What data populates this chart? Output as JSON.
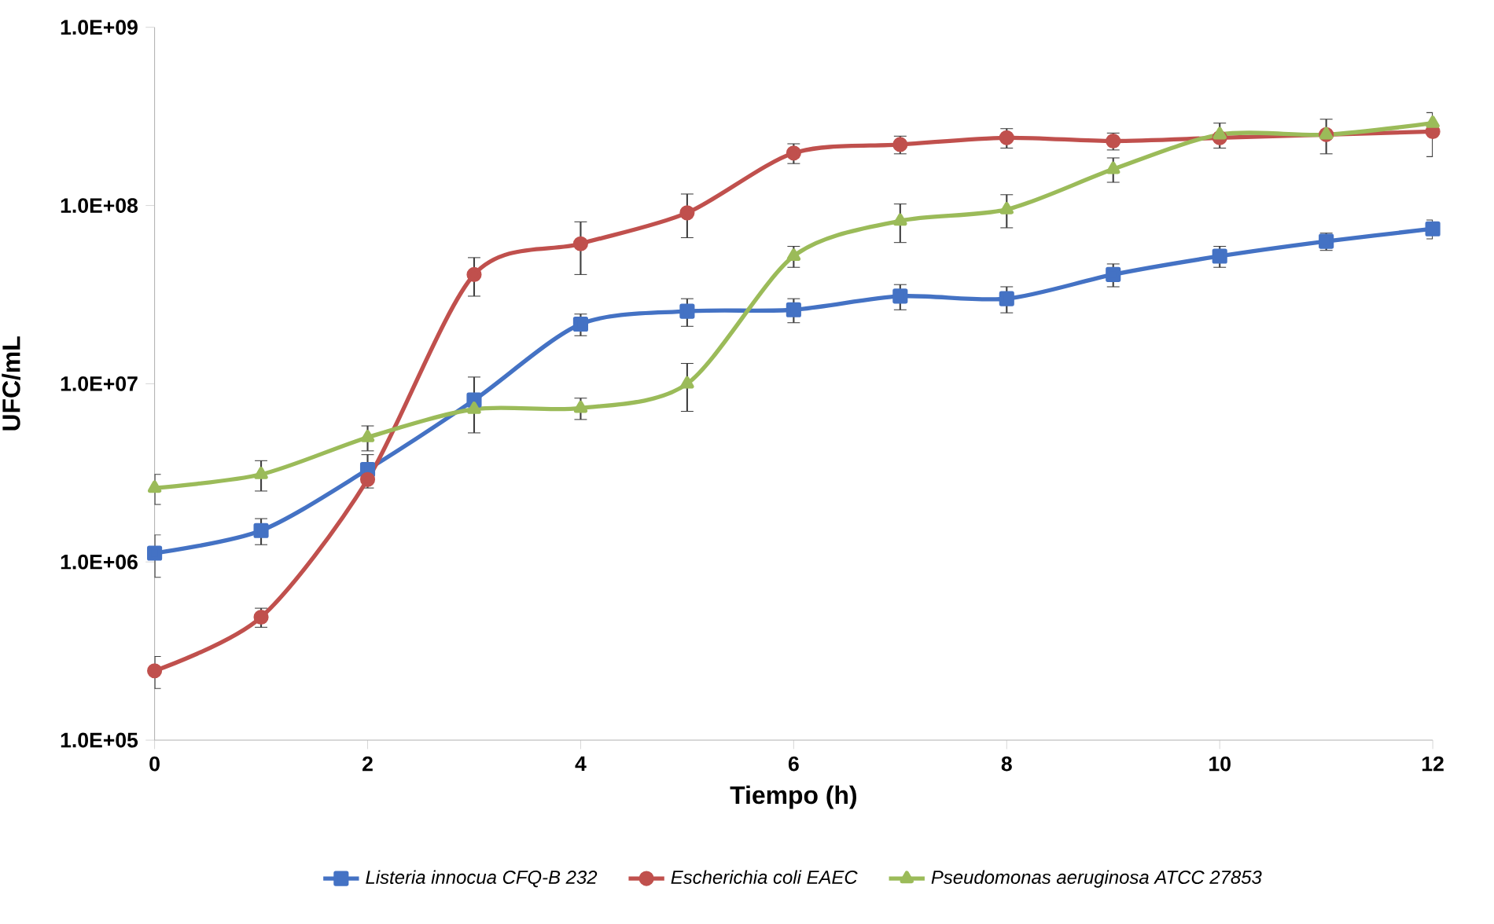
{
  "chart_data": {
    "type": "line",
    "xlabel": "Tiempo (h)",
    "ylabel": "UFC/mL",
    "log": "y",
    "legend": "bottom",
    "grid": false,
    "x": [
      0,
      1,
      2,
      3,
      4,
      5,
      6,
      7,
      8,
      9,
      10,
      11,
      12
    ],
    "xlim": [
      0,
      12
    ],
    "xticks": [
      0,
      2,
      4,
      6,
      8,
      10,
      12
    ],
    "ylim": [
      100000,
      1000000000
    ],
    "yticks": [
      {
        "value": 100000,
        "label": "1.0E+05"
      },
      {
        "value": 1000000,
        "label": "1.0E+06"
      },
      {
        "value": 10000000,
        "label": "1.0E+07"
      },
      {
        "value": 100000000,
        "label": "1.0E+08"
      },
      {
        "value": 1000000000,
        "label": "1.0E+09"
      }
    ],
    "series": [
      {
        "name": "Listeria innocua CFQ-B 232",
        "color": "#4472c4",
        "marker": "square",
        "values": [
          1120000,
          1500000,
          3300000,
          8100000,
          21600000,
          25500000,
          26000000,
          31000000,
          30000000,
          41000000,
          52000000,
          63000000,
          74000000
        ],
        "errors": [
          300000,
          250000,
          700000,
          2800000,
          3000000,
          4500000,
          4000000,
          5000000,
          5000000,
          6000000,
          7000000,
          7000000,
          9000000
        ]
      },
      {
        "name": "Escherichia coli EAEC",
        "color": "#c0504d",
        "marker": "circle",
        "values": [
          245000,
          490000,
          2900000,
          41000000,
          61000000,
          91000000,
          197000000,
          220000000,
          240000000,
          230000000,
          240000000,
          250000000,
          260000000
        ],
        "errors": [
          50000,
          60000,
          null,
          10000000,
          20000000,
          25000000,
          25000000,
          25000000,
          30000000,
          25000000,
          null,
          55000000,
          72000000
        ]
      },
      {
        "name": "Pseudomonas aeruginosa ATCC 27853",
        "color": "#9bbb59",
        "marker": "triangle",
        "values": [
          2600000,
          3100000,
          5000000,
          7200000,
          7300000,
          10000000,
          52000000,
          82000000,
          95000000,
          160000000,
          250000000,
          250000000,
          290000000
        ],
        "errors": [
          500000,
          600000,
          800000,
          null,
          1000000,
          3000000,
          7000000,
          20000000,
          20000000,
          25000000,
          40000000,
          null,
          null
        ]
      }
    ]
  }
}
